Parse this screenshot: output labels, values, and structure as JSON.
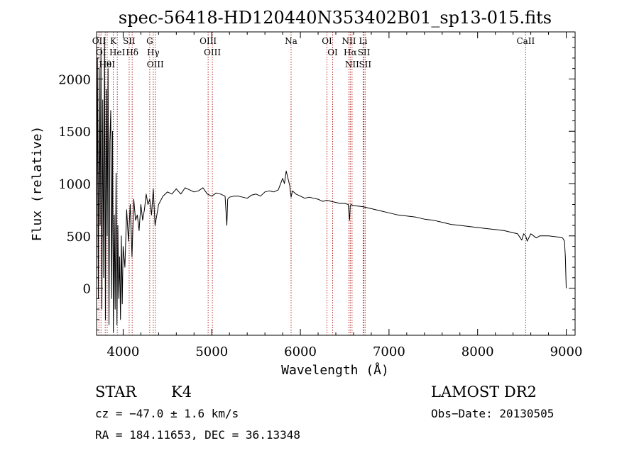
{
  "chart_data": {
    "type": "line",
    "title": "spec-56418-HD120440N353402B01_sp13-015.fits",
    "xlabel": "Wavelength (Å)",
    "ylabel": "Flux (relative)",
    "xlim": [
      3700,
      9100
    ],
    "ylim": [
      -450,
      2450
    ],
    "x_ticks": [
      4000,
      5000,
      6000,
      7000,
      8000,
      9000
    ],
    "y_ticks": [
      0,
      500,
      1000,
      1500,
      2000
    ],
    "grid": false,
    "series": [
      {
        "x": [
          3700,
          3710,
          3720,
          3730,
          3740,
          3750,
          3760,
          3770,
          3780,
          3790,
          3800,
          3810,
          3820,
          3830,
          3840,
          3850,
          3860,
          3870,
          3880,
          3890,
          3900,
          3910,
          3920,
          3930,
          3940,
          3950,
          3960,
          3970,
          3980,
          3990,
          4000,
          4020,
          4040,
          4060,
          4080,
          4100,
          4120,
          4140,
          4160,
          4180,
          4200,
          4220,
          4240,
          4260,
          4280,
          4300,
          4320,
          4340,
          4360,
          4380,
          4400,
          4450,
          4500,
          4550,
          4600,
          4650,
          4700,
          4750,
          4800,
          4850,
          4900,
          4950,
          5000,
          5050,
          5100,
          5150,
          5170,
          5180,
          5200,
          5250,
          5300,
          5350,
          5400,
          5450,
          5500,
          5550,
          5600,
          5650,
          5700,
          5750,
          5800,
          5820,
          5840,
          5860,
          5880,
          5895,
          5910,
          5950,
          6000,
          6050,
          6100,
          6150,
          6200,
          6250,
          6300,
          6350,
          6400,
          6450,
          6500,
          6540,
          6555,
          6563,
          6570,
          6600,
          6700,
          6800,
          6900,
          7000,
          7100,
          7200,
          7300,
          7400,
          7500,
          7600,
          7700,
          7800,
          7900,
          8000,
          8100,
          8200,
          8300,
          8400,
          8450,
          8498,
          8520,
          8542,
          8560,
          8600,
          8662,
          8700,
          8800,
          8900,
          8960,
          8980,
          8990,
          9000
        ],
        "y": [
          20,
          2200,
          -100,
          2100,
          600,
          2300,
          -200,
          1800,
          100,
          2400,
          -300,
          1900,
          500,
          2100,
          -350,
          1400,
          1700,
          -100,
          1500,
          -420,
          700,
          -200,
          1100,
          -350,
          600,
          -100,
          300,
          -300,
          500,
          -150,
          400,
          200,
          750,
          450,
          800,
          300,
          850,
          650,
          700,
          550,
          800,
          650,
          750,
          900,
          800,
          850,
          700,
          950,
          600,
          700,
          800,
          880,
          920,
          900,
          950,
          900,
          960,
          940,
          920,
          930,
          960,
          900,
          880,
          910,
          900,
          880,
          600,
          850,
          870,
          880,
          880,
          870,
          860,
          890,
          900,
          880,
          920,
          930,
          920,
          940,
          1050,
          1000,
          1120,
          1050,
          980,
          870,
          930,
          900,
          880,
          860,
          870,
          860,
          850,
          830,
          840,
          830,
          820,
          810,
          810,
          800,
          650,
          780,
          800,
          790,
          780,
          760,
          740,
          720,
          700,
          690,
          680,
          660,
          650,
          630,
          610,
          600,
          590,
          580,
          570,
          560,
          550,
          530,
          520,
          460,
          520,
          500,
          450,
          520,
          480,
          500,
          500,
          490,
          480,
          450,
          300,
          0
        ]
      }
    ],
    "annotations": [
      {
        "x": 3727,
        "label": "OII"
      },
      {
        "x": 3750,
        "label": "OI"
      },
      {
        "x": 3798,
        "label": "Hθ"
      },
      {
        "x": 3820,
        "label": "HeI"
      },
      {
        "x": 3889,
        "label": "K"
      },
      {
        "x": 3934,
        "label": "HeI"
      },
      {
        "x": 4068,
        "label": "SII"
      },
      {
        "x": 4102,
        "label": "Hδ"
      },
      {
        "x": 4300,
        "label": "G"
      },
      {
        "x": 4340,
        "label": "Hγ"
      },
      {
        "x": 4363,
        "label": "OIII"
      },
      {
        "x": 4959,
        "label": "OIII"
      },
      {
        "x": 5007,
        "label": "OIII"
      },
      {
        "x": 5895,
        "label": "Na"
      },
      {
        "x": 6300,
        "label": "OI"
      },
      {
        "x": 6364,
        "label": "OI"
      },
      {
        "x": 6548,
        "label": "NII"
      },
      {
        "x": 6563,
        "label": "Hα"
      },
      {
        "x": 6583,
        "label": "NII"
      },
      {
        "x": 6708,
        "label": "Li"
      },
      {
        "x": 6717,
        "label": "SII"
      },
      {
        "x": 6731,
        "label": "SII"
      },
      {
        "x": 8542,
        "label": "CaII"
      }
    ]
  },
  "info": {
    "obj_type": "STAR",
    "subclass": "K4",
    "survey": "LAMOST DR2",
    "cz": "cz = −47.0 ± 1.6 km/s",
    "obs_date": "Obs−Date: 20130505",
    "radec": "RA = 184.11653, DEC =  36.13348"
  },
  "colors": {
    "spectrum": "#000000",
    "lines": "#b22222"
  }
}
